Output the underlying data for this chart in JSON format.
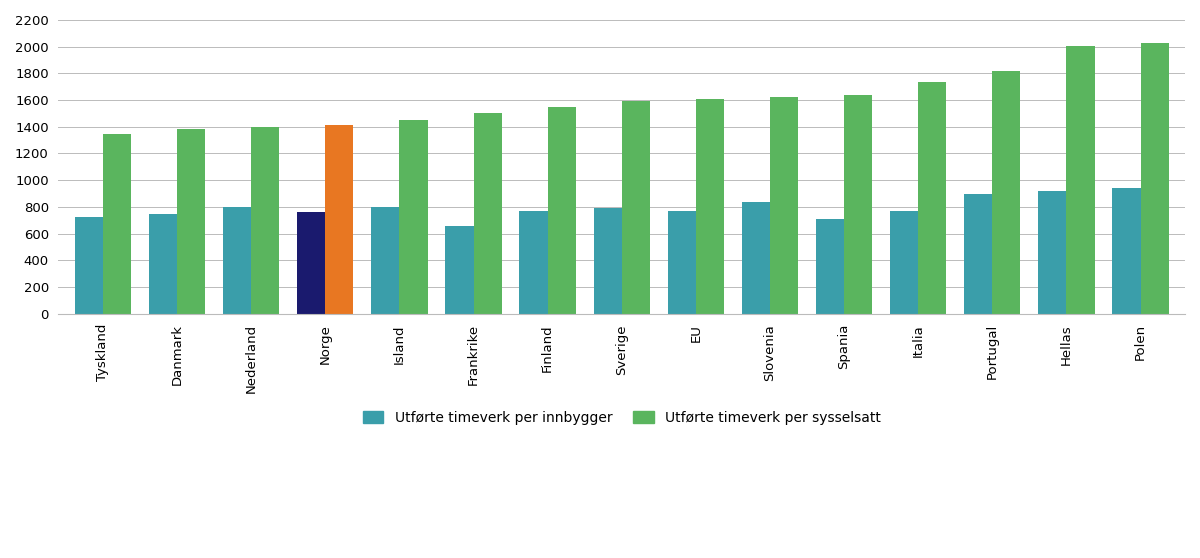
{
  "categories": [
    "Tyskland",
    "Danmark",
    "Nederland",
    "Norge",
    "Island",
    "Frankrike",
    "Finland",
    "Sverige",
    "EU",
    "Slovenia",
    "Spania",
    "Italia",
    "Portugal",
    "Hellas",
    "Polen"
  ],
  "per_innbygger": [
    725,
    745,
    800,
    760,
    800,
    660,
    770,
    795,
    770,
    840,
    710,
    770,
    895,
    920,
    945
  ],
  "per_sysselsatt": [
    1345,
    1385,
    1400,
    1415,
    1450,
    1500,
    1550,
    1595,
    1610,
    1620,
    1635,
    1735,
    1820,
    2005,
    2025
  ],
  "innbygger_colors": [
    "#3a9eaa",
    "#3a9eaa",
    "#3a9eaa",
    "#1a1a6e",
    "#3a9eaa",
    "#3a9eaa",
    "#3a9eaa",
    "#3a9eaa",
    "#3a9eaa",
    "#3a9eaa",
    "#3a9eaa",
    "#3a9eaa",
    "#3a9eaa",
    "#3a9eaa",
    "#3a9eaa"
  ],
  "sysselsatt_colors": [
    "#5ab55e",
    "#5ab55e",
    "#5ab55e",
    "#e87722",
    "#5ab55e",
    "#5ab55e",
    "#5ab55e",
    "#5ab55e",
    "#5ab55e",
    "#5ab55e",
    "#5ab55e",
    "#5ab55e",
    "#5ab55e",
    "#5ab55e",
    "#5ab55e"
  ],
  "ylim": [
    0,
    2200
  ],
  "yticks": [
    0,
    200,
    400,
    600,
    800,
    1000,
    1200,
    1400,
    1600,
    1800,
    2000,
    2200
  ],
  "legend_innbygger": "Utførte timeverk per innbygger",
  "legend_sysselsatt": "Utførte timeverk per sysselsatt",
  "innbygger_color_legend": "#3a9eaa",
  "sysselsatt_color_legend": "#5ab55e",
  "background_color": "#ffffff",
  "grid_color": "#bbbbbb"
}
